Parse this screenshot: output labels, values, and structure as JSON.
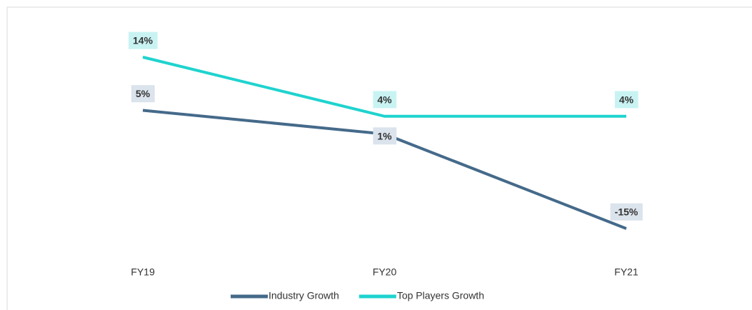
{
  "chart_data": {
    "type": "line",
    "categories": [
      "FY19",
      "FY20",
      "FY21"
    ],
    "series": [
      {
        "name": "Industry Growth",
        "color": "#456a8a",
        "values": [
          5,
          1,
          -15
        ],
        "value_labels": [
          "5%",
          "1%",
          "-15%"
        ]
      },
      {
        "name": "Top Players Growth",
        "color": "#1fd3cf",
        "values": [
          14,
          4,
          4
        ],
        "value_labels": [
          "14%",
          "4%",
          "4%"
        ]
      }
    ]
  }
}
